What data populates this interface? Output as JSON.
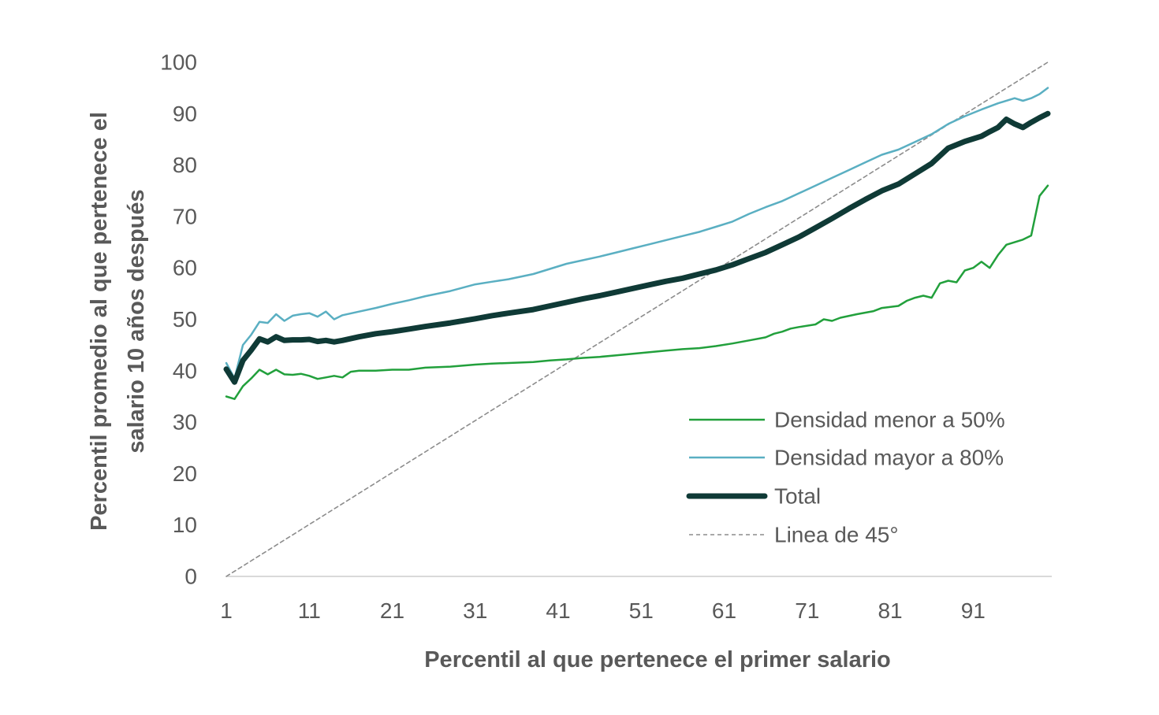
{
  "chart_data": {
    "type": "line",
    "title": "",
    "xlabel": "Percentil al que pertenece el primer salario",
    "ylabel_lines": [
      "Percentil promedio al que pertenece el",
      "salario 10 años después"
    ],
    "xlim": [
      1,
      100
    ],
    "ylim": [
      0,
      100
    ],
    "x_ticks": [
      1,
      11,
      21,
      31,
      41,
      51,
      61,
      71,
      81,
      91
    ],
    "x_tick_labels": [
      "1",
      "11",
      "21",
      "31",
      "41",
      "51",
      "61",
      "71",
      "81",
      "91"
    ],
    "y_ticks": [
      0,
      10,
      20,
      30,
      40,
      50,
      60,
      70,
      80,
      90,
      100
    ],
    "y_tick_labels": [
      "0",
      "10",
      "20",
      "30",
      "40",
      "50",
      "60",
      "70",
      "80",
      "90",
      "100"
    ],
    "grid": false,
    "legend_position": "bottom-right",
    "series": [
      {
        "name": "Densidad menor a 50%",
        "color": "#22a03c",
        "style": "solid",
        "points": [
          [
            1,
            35
          ],
          [
            2,
            34.5
          ],
          [
            3,
            37
          ],
          [
            4,
            38.5
          ],
          [
            5,
            40.2
          ],
          [
            6,
            39.3
          ],
          [
            7,
            40.2
          ],
          [
            8,
            39.3
          ],
          [
            9,
            39.2
          ],
          [
            10,
            39.4
          ],
          [
            11,
            39
          ],
          [
            12,
            38.4
          ],
          [
            13,
            38.7
          ],
          [
            14,
            39
          ],
          [
            15,
            38.7
          ],
          [
            16,
            39.8
          ],
          [
            17,
            40
          ],
          [
            18,
            40
          ],
          [
            19,
            40
          ],
          [
            21,
            40.2
          ],
          [
            23,
            40.2
          ],
          [
            25,
            40.6
          ],
          [
            28,
            40.8
          ],
          [
            31,
            41.2
          ],
          [
            33,
            41.4
          ],
          [
            35,
            41.5
          ],
          [
            38,
            41.7
          ],
          [
            40,
            42
          ],
          [
            42,
            42.2
          ],
          [
            44,
            42.5
          ],
          [
            46,
            42.7
          ],
          [
            48,
            43
          ],
          [
            50,
            43.3
          ],
          [
            52,
            43.6
          ],
          [
            54,
            43.9
          ],
          [
            56,
            44.2
          ],
          [
            58,
            44.4
          ],
          [
            60,
            44.8
          ],
          [
            62,
            45.3
          ],
          [
            64,
            45.9
          ],
          [
            66,
            46.5
          ],
          [
            67,
            47.2
          ],
          [
            68,
            47.6
          ],
          [
            69,
            48.2
          ],
          [
            70,
            48.5
          ],
          [
            72,
            49
          ],
          [
            73,
            50
          ],
          [
            74,
            49.7
          ],
          [
            75,
            50.3
          ],
          [
            77,
            51
          ],
          [
            79,
            51.6
          ],
          [
            80,
            52.2
          ],
          [
            82,
            52.6
          ],
          [
            83,
            53.6
          ],
          [
            84,
            54.2
          ],
          [
            85,
            54.6
          ],
          [
            86,
            54.2
          ],
          [
            87,
            57
          ],
          [
            88,
            57.5
          ],
          [
            89,
            57.2
          ],
          [
            90,
            59.5
          ],
          [
            91,
            60
          ],
          [
            92,
            61.2
          ],
          [
            93,
            60
          ],
          [
            94,
            62.5
          ],
          [
            95,
            64.5
          ],
          [
            96,
            65
          ],
          [
            97,
            65.5
          ],
          [
            98,
            66.3
          ],
          [
            99,
            74
          ],
          [
            100,
            76
          ]
        ]
      },
      {
        "name": "Densidad mayor a 80%",
        "color": "#5aafc2",
        "style": "solid",
        "points": [
          [
            1,
            41.5
          ],
          [
            2,
            38.5
          ],
          [
            3,
            45
          ],
          [
            4,
            47
          ],
          [
            5,
            49.5
          ],
          [
            6,
            49.3
          ],
          [
            7,
            51
          ],
          [
            8,
            49.7
          ],
          [
            9,
            50.7
          ],
          [
            10,
            51
          ],
          [
            11,
            51.2
          ],
          [
            12,
            50.5
          ],
          [
            13,
            51.5
          ],
          [
            14,
            50
          ],
          [
            15,
            50.8
          ],
          [
            17,
            51.5
          ],
          [
            19,
            52.2
          ],
          [
            21,
            53
          ],
          [
            23,
            53.7
          ],
          [
            25,
            54.5
          ],
          [
            28,
            55.5
          ],
          [
            31,
            56.8
          ],
          [
            33,
            57.3
          ],
          [
            35,
            57.8
          ],
          [
            38,
            58.8
          ],
          [
            40,
            59.8
          ],
          [
            42,
            60.8
          ],
          [
            44,
            61.5
          ],
          [
            46,
            62.2
          ],
          [
            48,
            63
          ],
          [
            50,
            63.8
          ],
          [
            52,
            64.6
          ],
          [
            54,
            65.4
          ],
          [
            56,
            66.2
          ],
          [
            58,
            67
          ],
          [
            60,
            68
          ],
          [
            62,
            69
          ],
          [
            64,
            70.5
          ],
          [
            66,
            71.8
          ],
          [
            68,
            73
          ],
          [
            70,
            74.5
          ],
          [
            72,
            76
          ],
          [
            74,
            77.5
          ],
          [
            76,
            79
          ],
          [
            78,
            80.5
          ],
          [
            80,
            82
          ],
          [
            82,
            83
          ],
          [
            84,
            84.5
          ],
          [
            86,
            86
          ],
          [
            88,
            88
          ],
          [
            90,
            89.5
          ],
          [
            92,
            90.8
          ],
          [
            94,
            92
          ],
          [
            96,
            93
          ],
          [
            97,
            92.5
          ],
          [
            98,
            93
          ],
          [
            99,
            93.8
          ],
          [
            100,
            95
          ]
        ]
      },
      {
        "name": "Total",
        "color": "#0f3a36",
        "style": "thick",
        "points": [
          [
            1,
            40.3
          ],
          [
            2,
            37.8
          ],
          [
            3,
            42
          ],
          [
            4,
            44
          ],
          [
            5,
            46.2
          ],
          [
            6,
            45.6
          ],
          [
            7,
            46.6
          ],
          [
            8,
            45.9
          ],
          [
            9,
            46
          ],
          [
            10,
            46
          ],
          [
            11,
            46.1
          ],
          [
            12,
            45.7
          ],
          [
            13,
            45.9
          ],
          [
            14,
            45.6
          ],
          [
            15,
            45.9
          ],
          [
            17,
            46.6
          ],
          [
            19,
            47.2
          ],
          [
            21,
            47.6
          ],
          [
            23,
            48.1
          ],
          [
            25,
            48.6
          ],
          [
            28,
            49.3
          ],
          [
            31,
            50.1
          ],
          [
            33,
            50.7
          ],
          [
            35,
            51.2
          ],
          [
            38,
            51.9
          ],
          [
            40,
            52.6
          ],
          [
            42,
            53.3
          ],
          [
            44,
            54
          ],
          [
            46,
            54.6
          ],
          [
            48,
            55.3
          ],
          [
            50,
            56
          ],
          [
            52,
            56.7
          ],
          [
            54,
            57.4
          ],
          [
            56,
            58
          ],
          [
            58,
            58.8
          ],
          [
            60,
            59.6
          ],
          [
            62,
            60.6
          ],
          [
            64,
            61.8
          ],
          [
            66,
            63
          ],
          [
            68,
            64.5
          ],
          [
            70,
            66
          ],
          [
            72,
            67.8
          ],
          [
            74,
            69.6
          ],
          [
            76,
            71.5
          ],
          [
            78,
            73.3
          ],
          [
            80,
            75
          ],
          [
            82,
            76.3
          ],
          [
            84,
            78.3
          ],
          [
            86,
            80.3
          ],
          [
            88,
            83.3
          ],
          [
            90,
            84.6
          ],
          [
            92,
            85.6
          ],
          [
            93,
            86.5
          ],
          [
            94,
            87.3
          ],
          [
            95,
            88.9
          ],
          [
            96,
            88
          ],
          [
            97,
            87.3
          ],
          [
            98,
            88.3
          ],
          [
            99,
            89.2
          ],
          [
            100,
            90
          ]
        ]
      },
      {
        "name": "Linea de 45°",
        "color": "#8c8c8c",
        "style": "dashed",
        "points": [
          [
            1,
            0
          ],
          [
            100,
            100
          ]
        ]
      }
    ]
  }
}
